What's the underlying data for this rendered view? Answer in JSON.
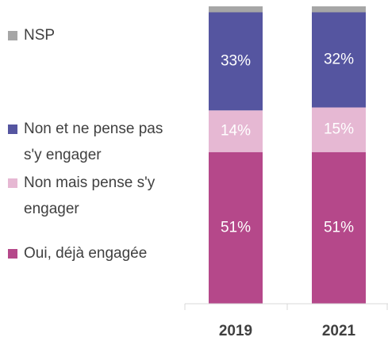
{
  "chart_data": {
    "type": "stacked_bar",
    "categories": [
      "2019",
      "2021"
    ],
    "ylim": [
      0,
      100
    ],
    "legend": "left",
    "series": [
      {
        "name": "Oui, déjà engagée",
        "color": "#b5488a",
        "values": [
          51,
          51
        ],
        "value_labels": [
          "51%",
          "51%"
        ]
      },
      {
        "name": "Non mais pense s'y engager",
        "color": "#e6b8d3",
        "values": [
          14,
          15
        ],
        "value_labels": [
          "14%",
          "15%"
        ]
      },
      {
        "name": "Non et ne pense pas s'y engager",
        "color": "#5555a0",
        "values": [
          33,
          32
        ],
        "value_labels": [
          "33%",
          "32%"
        ]
      },
      {
        "name": "NSP",
        "color": "#a6a6a6",
        "values": [
          2,
          2
        ]
      }
    ]
  }
}
